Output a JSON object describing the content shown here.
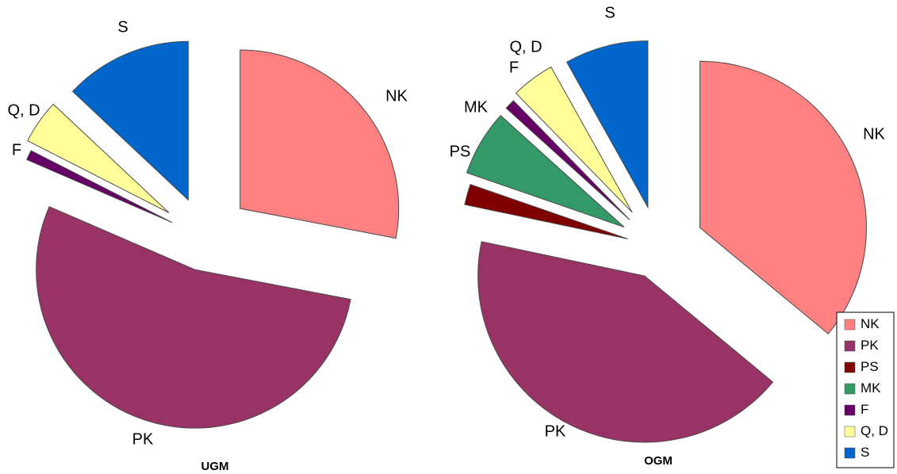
{
  "chart_data": [
    {
      "type": "pie",
      "title": "UGM",
      "start_angle_deg": 0,
      "slices": [
        {
          "label": "NK",
          "value": 28.0,
          "color": "#ff8080"
        },
        {
          "label": "PK",
          "value": 53.5,
          "color": "#993366"
        },
        {
          "label": "F",
          "value": 1.0,
          "color": "#660066"
        },
        {
          "label": "Q, D",
          "value": 4.5,
          "color": "#ffff99"
        },
        {
          "label": "S",
          "value": 13.0,
          "color": "#0066cc"
        }
      ]
    },
    {
      "type": "pie",
      "title": "OGM",
      "start_angle_deg": 0,
      "slices": [
        {
          "label": "NK",
          "value": 36.0,
          "color": "#ff8080"
        },
        {
          "label": "PK",
          "value": 42.3,
          "color": "#993366"
        },
        {
          "label": "PS",
          "value": 2.0,
          "color": "#800000"
        },
        {
          "label": "MK",
          "value": 6.4,
          "color": "#339966"
        },
        {
          "label": "F",
          "value": 1.0,
          "color": "#660066"
        },
        {
          "label": "Q, D",
          "value": 4.2,
          "color": "#ffff99"
        },
        {
          "label": "S",
          "value": 8.1,
          "color": "#0066cc"
        }
      ]
    }
  ],
  "legend": {
    "placement": "bottom-right",
    "items": [
      {
        "label": "NK",
        "color": "#ff8080"
      },
      {
        "label": "PK",
        "color": "#993366"
      },
      {
        "label": "PS",
        "color": "#800000"
      },
      {
        "label": "MK",
        "color": "#339966"
      },
      {
        "label": "F",
        "color": "#660066"
      },
      {
        "label": "Q, D",
        "color": "#ffff99"
      },
      {
        "label": "S",
        "color": "#0066cc"
      }
    ]
  }
}
